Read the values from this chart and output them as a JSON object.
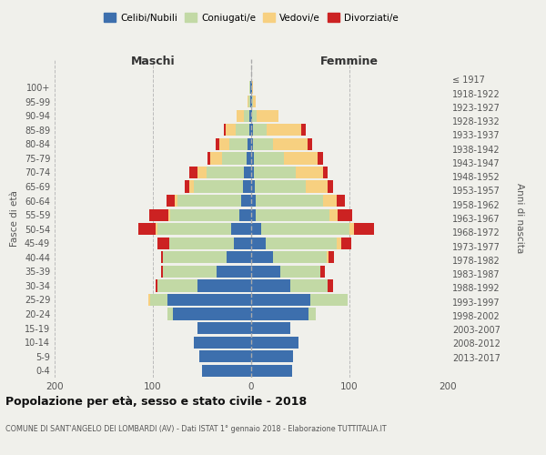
{
  "age_groups": [
    "0-4",
    "5-9",
    "10-14",
    "15-19",
    "20-24",
    "25-29",
    "30-34",
    "35-39",
    "40-44",
    "45-49",
    "50-54",
    "55-59",
    "60-64",
    "65-69",
    "70-74",
    "75-79",
    "80-84",
    "85-89",
    "90-94",
    "95-99",
    "100+"
  ],
  "birth_years": [
    "2013-2017",
    "2008-2012",
    "2003-2007",
    "1998-2002",
    "1993-1997",
    "1988-1992",
    "1983-1987",
    "1978-1982",
    "1973-1977",
    "1968-1972",
    "1963-1967",
    "1958-1962",
    "1953-1957",
    "1948-1952",
    "1943-1947",
    "1938-1942",
    "1933-1937",
    "1928-1932",
    "1923-1927",
    "1918-1922",
    "≤ 1917"
  ],
  "colors": {
    "celibi": "#3d6fad",
    "coniugati": "#c2d9a5",
    "vedovi": "#f7d080",
    "divorziati": "#cc2222"
  },
  "maschi": {
    "celibi": [
      50,
      53,
      58,
      55,
      80,
      85,
      55,
      35,
      25,
      18,
      20,
      12,
      10,
      8,
      7,
      5,
      4,
      2,
      2,
      1,
      1
    ],
    "coniugati": [
      0,
      0,
      0,
      0,
      5,
      18,
      40,
      55,
      65,
      65,
      75,
      70,
      65,
      50,
      38,
      25,
      18,
      14,
      5,
      2,
      1
    ],
    "vedovi": [
      0,
      0,
      0,
      0,
      0,
      2,
      0,
      0,
      0,
      0,
      2,
      2,
      3,
      5,
      10,
      12,
      10,
      10,
      8,
      1,
      0
    ],
    "divorziati": [
      0,
      0,
      0,
      0,
      0,
      0,
      2,
      2,
      2,
      12,
      18,
      20,
      8,
      5,
      8,
      2,
      4,
      2,
      0,
      0,
      0
    ]
  },
  "femmine": {
    "celibi": [
      42,
      43,
      48,
      40,
      58,
      60,
      40,
      30,
      22,
      15,
      10,
      5,
      5,
      4,
      3,
      3,
      2,
      2,
      1,
      1,
      1
    ],
    "coniugati": [
      0,
      0,
      0,
      0,
      8,
      38,
      38,
      40,
      55,
      72,
      90,
      75,
      68,
      52,
      42,
      30,
      20,
      14,
      5,
      1,
      0
    ],
    "vedovi": [
      0,
      0,
      0,
      0,
      0,
      0,
      0,
      0,
      2,
      5,
      5,
      8,
      14,
      22,
      28,
      35,
      35,
      35,
      22,
      3,
      1
    ],
    "divorziati": [
      0,
      0,
      0,
      0,
      0,
      0,
      5,
      5,
      5,
      10,
      20,
      15,
      8,
      5,
      5,
      5,
      5,
      5,
      0,
      0,
      0
    ]
  },
  "xlim": [
    -200,
    200
  ],
  "xticks": [
    -200,
    -100,
    0,
    100,
    200
  ],
  "xticklabels": [
    "200",
    "100",
    "0",
    "100",
    "200"
  ],
  "title": "Popolazione per età, sesso e stato civile - 2018",
  "subtitle": "COMUNE DI SANT'ANGELO DEI LOMBARDI (AV) - Dati ISTAT 1° gennaio 2018 - Elaborazione TUTTITALIA.IT",
  "ylabel_left": "Fasce di età",
  "ylabel_right": "Anni di nascita",
  "header_maschi": "Maschi",
  "header_femmine": "Femmine",
  "legend_labels": [
    "Celibi/Nubili",
    "Coniugati/e",
    "Vedovi/e",
    "Divorziati/e"
  ],
  "bg_color": "#f0f0eb"
}
